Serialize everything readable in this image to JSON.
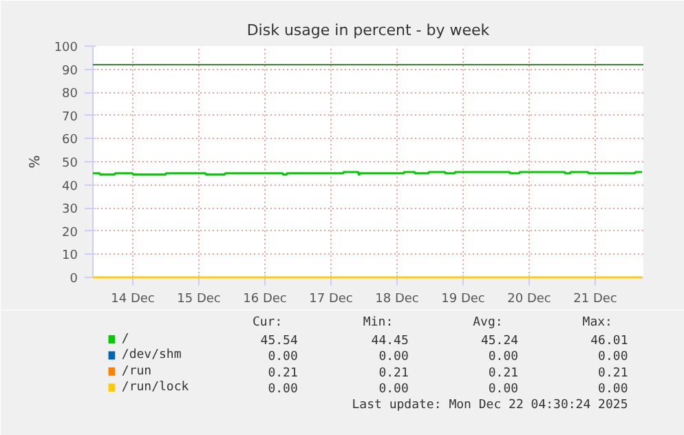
{
  "chart_data": {
    "type": "step",
    "title": "Disk usage in percent - by week",
    "ylabel": "%",
    "xlim": [
      "2025-12-13T21:30",
      "2025-12-22T05:30"
    ],
    "xticks": [
      {
        "value": "2025-12-14T12:00",
        "label": "14 Dec"
      },
      {
        "value": "2025-12-15T12:00",
        "label": "15 Dec"
      },
      {
        "value": "2025-12-16T12:00",
        "label": "16 Dec"
      },
      {
        "value": "2025-12-17T12:00",
        "label": "17 Dec"
      },
      {
        "value": "2025-12-18T12:00",
        "label": "18 Dec"
      },
      {
        "value": "2025-12-19T12:00",
        "label": "19 Dec"
      },
      {
        "value": "2025-12-20T12:00",
        "label": "20 Dec"
      },
      {
        "value": "2025-12-21T12:00",
        "label": "21 Dec"
      }
    ],
    "ylim": [
      0,
      100
    ],
    "yticks": [
      0,
      10,
      20,
      30,
      40,
      50,
      60,
      70,
      80,
      90,
      100
    ],
    "grid": true,
    "legend": "bottom",
    "series": [
      {
        "name": "/",
        "color": "#00cc00",
        "x": [
          "2025-12-13T21:30",
          "2025-12-14T00:00",
          "2025-12-14T05:30",
          "2025-12-14T12:00",
          "2025-12-15T00:00",
          "2025-12-15T14:30",
          "2025-12-15T21:30",
          "2025-12-16T18:30",
          "2025-12-16T20:00",
          "2025-12-17T16:30",
          "2025-12-17T22:00",
          "2025-12-17T22:30",
          "2025-12-18T14:30",
          "2025-12-18T18:30",
          "2025-12-18T23:30",
          "2025-12-19T05:30",
          "2025-12-19T09:00",
          "2025-12-20T05:00",
          "2025-12-20T08:30",
          "2025-12-21T01:00",
          "2025-12-21T03:00",
          "2025-12-21T09:30",
          "2025-12-22T02:30",
          "2025-12-22T05:00"
        ],
        "values": [
          45.0,
          44.5,
          45.0,
          44.5,
          45.0,
          44.5,
          45.0,
          44.5,
          45.0,
          45.5,
          44.5,
          45.0,
          45.5,
          45.0,
          45.5,
          45.0,
          45.5,
          45.0,
          45.5,
          45.0,
          45.5,
          45.0,
          45.5,
          45.5
        ]
      },
      {
        "name": "/dev/shm",
        "color": "#0066b3",
        "values": [
          null
        ]
      },
      {
        "name": "/run",
        "color": "#ff8000",
        "values": [
          null
        ]
      },
      {
        "name": "/run/lock",
        "color": "#ffcc00",
        "x": [
          "2025-12-13T21:30",
          "2025-12-22T05:00"
        ],
        "values": [
          0.0,
          0.0
        ]
      }
    ],
    "ref_lines": [
      {
        "axis": "y",
        "value": 92,
        "color": "#2a8a2a"
      }
    ],
    "annotations": [
      "Cur:",
      "Min:",
      "Avg:",
      "Max:",
      "45.54",
      "44.45",
      "45.24",
      "46.01",
      "0.00",
      "0.00",
      "0.00",
      "0.00",
      "0.21",
      "0.21",
      "0.21",
      "0.21",
      "0.00",
      "0.00",
      "0.00",
      "0.00",
      "Last update: Mon Dec 22 04:30:24 2025"
    ]
  }
}
